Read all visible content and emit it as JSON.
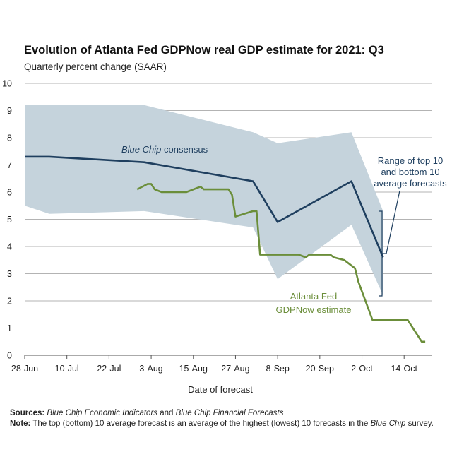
{
  "title": "Evolution of Atlanta Fed GDPNow real GDP estimate for 2021: Q3",
  "subtitle": "Quarterly percent change (SAAR)",
  "xlabel": "Date of forecast",
  "annotations": {
    "blue_chip_italic": "Blue Chip",
    "blue_chip_rest": " consensus",
    "gdpnow_line1": "Atlanta Fed",
    "gdpnow_line2": "GDPNow estimate",
    "range_line1": "Range of top 10",
    "range_line2": "and bottom 10",
    "range_line3": "average forecasts"
  },
  "footer": {
    "sources_label": "Sources:",
    "sources_italic1": "Blue Chip Economic Indicators",
    "sources_and": " and ",
    "sources_italic2": "Blue Chip Financial Forecasts",
    "note_label": "Note:",
    "note_text": " The top (bottom) 10 average forecast is an average of the highest (lowest) 10 forecasts in the ",
    "note_italic": "Blue Chip",
    "note_end": " survey."
  },
  "colors": {
    "consensus": "#1f3f5f",
    "gdpnow": "#6b8e3a",
    "band": "#c5d3dc",
    "grid": "#9a9a9a"
  },
  "chart_data": {
    "type": "line",
    "title": "Evolution of Atlanta Fed GDPNow real GDP estimate for 2021: Q3",
    "subtitle": "Quarterly percent change (SAAR)",
    "xlabel": "Date of forecast",
    "ylabel": "",
    "ylim": [
      0,
      10
    ],
    "yticks": [
      0,
      1,
      2,
      3,
      4,
      5,
      6,
      7,
      8,
      9,
      10
    ],
    "xlim": [
      "2021-06-28",
      "2021-10-22"
    ],
    "xticks": [
      "28-Jun",
      "10-Jul",
      "22-Jul",
      "3-Aug",
      "15-Aug",
      "27-Aug",
      "8-Sep",
      "20-Sep",
      "2-Oct",
      "14-Oct"
    ],
    "xtick_dates": [
      "2021-06-28",
      "2021-07-10",
      "2021-07-22",
      "2021-08-03",
      "2021-08-15",
      "2021-08-27",
      "2021-09-08",
      "2021-09-20",
      "2021-10-02",
      "2021-10-14"
    ],
    "grid": "horizontal",
    "series": [
      {
        "name": "Blue Chip consensus",
        "x": [
          "2021-06-28",
          "2021-07-05",
          "2021-08-01",
          "2021-09-01",
          "2021-09-08",
          "2021-09-29",
          "2021-10-08"
        ],
        "y": [
          7.3,
          7.3,
          7.1,
          6.4,
          4.9,
          6.4,
          3.6
        ]
      },
      {
        "name": "Atlanta Fed GDPNow estimate",
        "x": [
          "2021-07-30",
          "2021-08-02",
          "2021-08-03",
          "2021-08-04",
          "2021-08-06",
          "2021-08-13",
          "2021-08-17",
          "2021-08-18",
          "2021-08-25",
          "2021-08-26",
          "2021-08-27",
          "2021-09-01",
          "2021-09-02",
          "2021-09-03",
          "2021-09-14",
          "2021-09-16",
          "2021-09-17",
          "2021-09-23",
          "2021-09-24",
          "2021-09-27",
          "2021-09-30",
          "2021-10-01",
          "2021-10-05",
          "2021-10-08",
          "2021-10-15",
          "2021-10-19",
          "2021-10-20"
        ],
        "y": [
          6.1,
          6.3,
          6.3,
          6.1,
          6.0,
          6.0,
          6.2,
          6.1,
          6.1,
          5.9,
          5.1,
          5.3,
          5.3,
          3.7,
          3.7,
          3.6,
          3.7,
          3.7,
          3.6,
          3.5,
          3.2,
          2.7,
          1.3,
          1.3,
          1.3,
          0.5,
          0.5
        ]
      }
    ],
    "band": {
      "name": "Range of top 10 and bottom 10 average forecasts",
      "x": [
        "2021-06-28",
        "2021-07-05",
        "2021-08-01",
        "2021-09-01",
        "2021-09-08",
        "2021-09-29",
        "2021-10-08"
      ],
      "top": [
        9.2,
        9.2,
        9.2,
        8.2,
        7.8,
        8.2,
        5.3
      ],
      "bottom": [
        5.5,
        5.2,
        5.3,
        4.7,
        2.8,
        4.8,
        2.2
      ]
    }
  }
}
